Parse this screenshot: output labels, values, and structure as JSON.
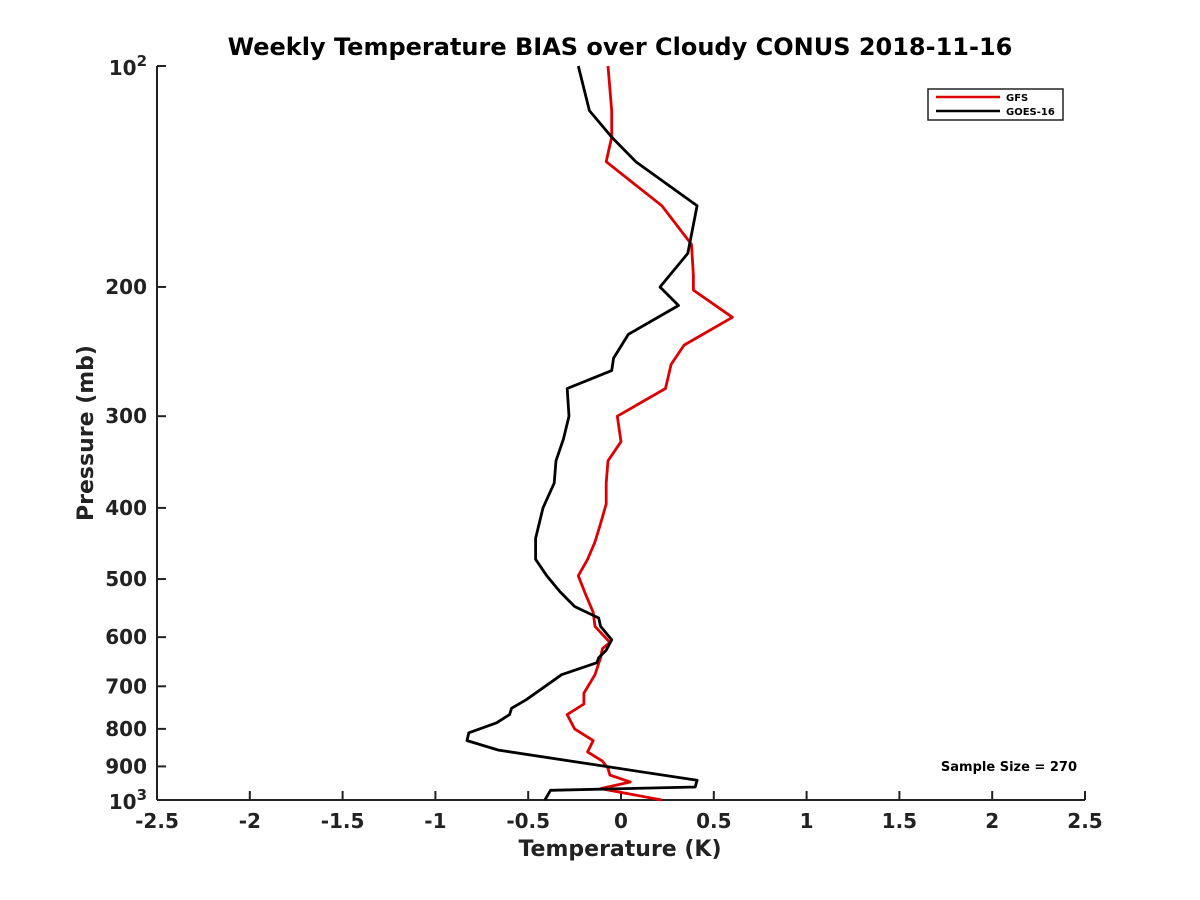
{
  "chart_data": {
    "type": "line",
    "title": "Weekly Temperature BIAS over Cloudy CONUS 2018-11-16",
    "xlabel": "Temperature (K)",
    "ylabel": "Pressure (mb)",
    "xlim": [
      -2.5,
      2.5
    ],
    "ylim": [
      100,
      1000
    ],
    "y_scale": "log",
    "y_reversed": true,
    "grid": false,
    "legend_position": "top-right",
    "x_ticks": [
      "-2.5",
      "-2",
      "-1.5",
      "-1",
      "-0.5",
      "0",
      "0.5",
      "1",
      "1.5",
      "2",
      "2.5"
    ],
    "x_tick_values": [
      -2.5,
      -2,
      -1.5,
      -1,
      -0.5,
      0,
      0.5,
      1,
      1.5,
      2,
      2.5
    ],
    "y_ticks": [
      {
        "value": 100,
        "base": "10",
        "exp": "2"
      },
      {
        "value": 200,
        "label": "200"
      },
      {
        "value": 300,
        "label": "300"
      },
      {
        "value": 400,
        "label": "400"
      },
      {
        "value": 500,
        "label": "500"
      },
      {
        "value": 600,
        "label": "600"
      },
      {
        "value": 700,
        "label": "700"
      },
      {
        "value": 800,
        "label": "800"
      },
      {
        "value": 900,
        "label": "900"
      },
      {
        "value": 1000,
        "base": "10",
        "exp": "3"
      }
    ],
    "annotation": "Sample Size = 270",
    "series": [
      {
        "name": "GFS",
        "color": "#dd0000",
        "x": [
          -0.07,
          -0.05,
          -0.05,
          -0.08,
          0.22,
          0.38,
          0.39,
          0.39,
          0.6,
          0.34,
          0.27,
          0.24,
          -0.02,
          0.0,
          -0.07,
          -0.08,
          -0.08,
          -0.11,
          -0.14,
          -0.18,
          -0.23,
          -0.19,
          -0.15,
          -0.14,
          -0.06,
          -0.1,
          -0.11,
          -0.14,
          -0.2,
          -0.2,
          -0.29,
          -0.25,
          -0.15,
          -0.18,
          -0.1,
          -0.07,
          -0.06,
          0.05,
          -0.11,
          0.22
        ],
        "y": [
          100,
          115,
          125,
          135,
          155,
          175,
          193,
          202,
          220,
          240,
          255,
          275,
          300,
          325,
          345,
          370,
          395,
          420,
          445,
          470,
          495,
          525,
          555,
          580,
          610,
          622,
          640,
          675,
          715,
          740,
          765,
          800,
          830,
          860,
          885,
          905,
          925,
          945,
          965,
          1000
        ]
      },
      {
        "name": "GOES-16",
        "color": "#000000",
        "x": [
          -0.23,
          -0.17,
          -0.05,
          0.08,
          0.41,
          0.36,
          0.21,
          0.31,
          0.04,
          -0.04,
          -0.05,
          -0.29,
          -0.28,
          -0.31,
          -0.35,
          -0.36,
          -0.42,
          -0.46,
          -0.46,
          -0.4,
          -0.33,
          -0.25,
          -0.12,
          -0.11,
          -0.05,
          -0.08,
          -0.12,
          -0.13,
          -0.32,
          -0.51,
          -0.59,
          -0.6,
          -0.67,
          -0.82,
          -0.83,
          -0.66,
          0.41,
          0.4,
          -0.38,
          -0.41
        ],
        "y": [
          100,
          115,
          125,
          135,
          155,
          180,
          200,
          212,
          232,
          250,
          260,
          275,
          300,
          322,
          345,
          370,
          400,
          440,
          470,
          495,
          520,
          545,
          565,
          580,
          605,
          625,
          640,
          650,
          675,
          730,
          750,
          765,
          785,
          810,
          830,
          855,
          940,
          960,
          970,
          1000
        ]
      }
    ]
  }
}
